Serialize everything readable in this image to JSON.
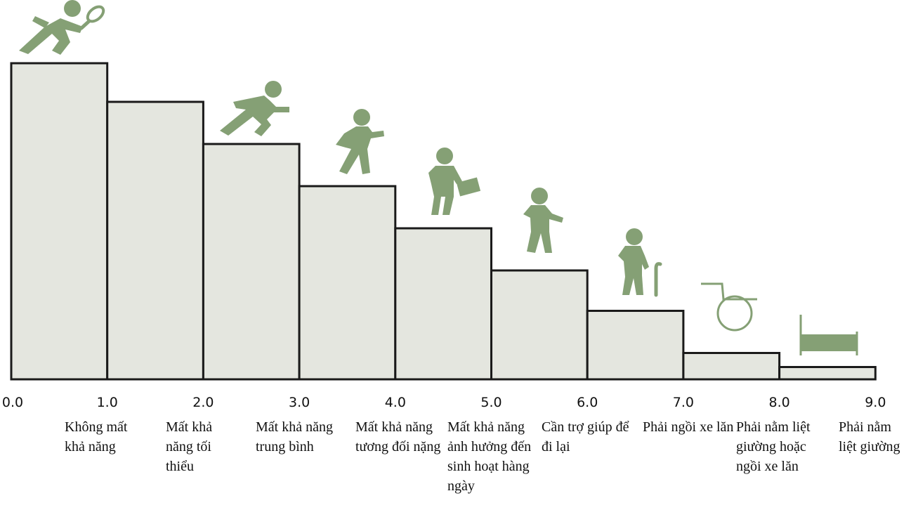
{
  "diagram": {
    "type": "staircase",
    "scale_ticks": [
      "0.0",
      "1.0",
      "2.0",
      "3.0",
      "4.0",
      "5.0",
      "6.0",
      "7.0",
      "8.0",
      "9.0"
    ],
    "steps": [
      {
        "from": 0,
        "to": 1,
        "level": 9.0
      },
      {
        "from": 1,
        "to": 2,
        "level": 7.9
      },
      {
        "from": 2,
        "to": 3,
        "level": 6.7
      },
      {
        "from": 3,
        "to": 4,
        "level": 5.5
      },
      {
        "from": 4,
        "to": 5,
        "level": 4.3
      },
      {
        "from": 5,
        "to": 6,
        "level": 3.1
      },
      {
        "from": 6,
        "to": 7,
        "level": 1.95
      },
      {
        "from": 7,
        "to": 8,
        "level": 0.75
      },
      {
        "from": 8,
        "to": 9,
        "level": 0.35
      }
    ],
    "categories": [
      {
        "label": "Không mất khả năng",
        "icon": "tennis-player-icon"
      },
      {
        "label": "Mất khả năng tối thiểu",
        "icon": "runner-icon"
      },
      {
        "label": "Mất khả năng trung bình",
        "icon": "walker-icon"
      },
      {
        "label": "Mất khả năng tương đối nặng",
        "icon": "person-with-briefcase-icon"
      },
      {
        "label": "Mất khả năng ảnh hưởng đến sinh hoạt hàng ngày",
        "icon": "slow-walker-icon"
      },
      {
        "label": "Cần trợ giúp để đi lại",
        "icon": "person-with-cane-icon"
      },
      {
        "label": "Phải ngồi xe lăn",
        "icon": "wheelchair-icon"
      },
      {
        "label": "Phải nằm liệt giường hoặc ngồi xe lăn",
        "icon": "bed-icon"
      },
      {
        "label": "Phải nằm liệt giường",
        "icon": ""
      }
    ],
    "colors": {
      "step_fill": "#e4e6df",
      "step_stroke": "#1a1a1a",
      "figure": "#85a075"
    }
  }
}
